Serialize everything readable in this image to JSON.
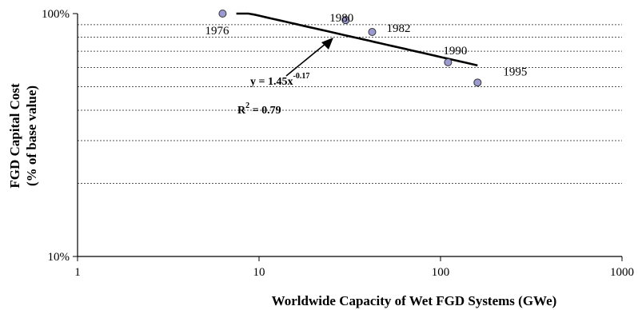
{
  "chart_data": {
    "type": "scatter",
    "x_scale": "log",
    "y_scale": "log",
    "xlim": [
      1,
      1000
    ],
    "ylim": [
      10,
      100
    ],
    "x_ticks": [
      "1",
      "10",
      "100",
      "1000"
    ],
    "y_ticks": [
      "10%",
      "100%"
    ],
    "y_gridlines": [
      20,
      30,
      40,
      50,
      60,
      70,
      80,
      90
    ],
    "grid_style": "dotted horizontal",
    "xlabel": "Worldwide Capacity of Wet FGD Systems (GWe)",
    "ylabel_line1": "FGD Capital Cost",
    "ylabel_line2": "(% of base value)",
    "points": [
      {
        "year": "1976",
        "x": 6.3,
        "y": 100
      },
      {
        "year": "1980",
        "x": 30,
        "y": 94
      },
      {
        "year": "1982",
        "x": 42,
        "y": 84
      },
      {
        "year": "1990",
        "x": 110,
        "y": 63
      },
      {
        "year": "1995",
        "x": 160,
        "y": 52
      }
    ],
    "marker_color": "#9a9ad0",
    "trendline": {
      "coef": 1.45,
      "exponent": -0.17,
      "x_range": [
        7.5,
        160
      ],
      "equation_prefix": "y = 1.45x",
      "equation_exponent": "-0.17",
      "r2_prefix": "R",
      "r2_power": "2",
      "r2_value": " = 0.79"
    }
  }
}
